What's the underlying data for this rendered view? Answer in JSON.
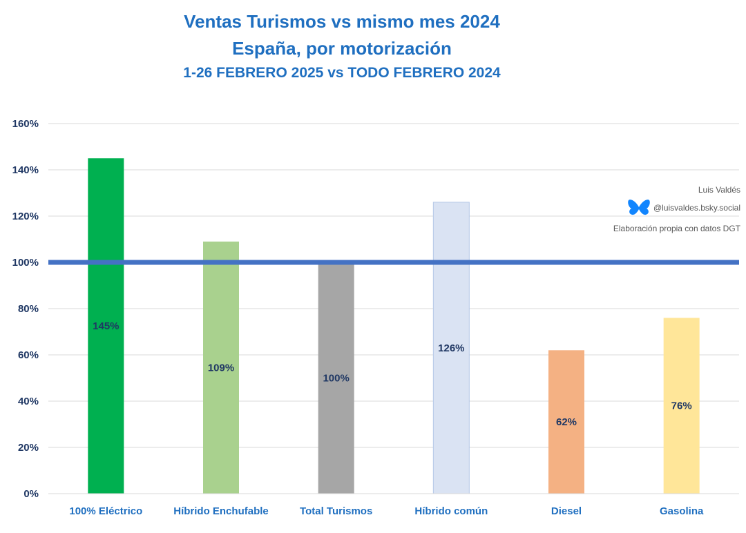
{
  "title": "Ventas Turismos vs mismo mes 2024",
  "subtitle": "España, por motorización",
  "subtitle2": "1-26 FEBRERO 2025 vs TODO FEBRERO 2024",
  "credits": {
    "author": "Luis Valdés",
    "handle": "@luisvaldes.bsky.social",
    "source": "Elaboración propia con datos DGT",
    "handle_icon": "butterfly-icon"
  },
  "chart_data": {
    "type": "bar",
    "categories": [
      "100% Eléctrico",
      "Híbrido Enchufable",
      "Total Turismos",
      "Híbrido común",
      "Diesel",
      "Gasolina"
    ],
    "values": [
      145,
      109,
      100,
      126,
      62,
      76
    ],
    "data_labels": [
      "145%",
      "109%",
      "100%",
      "126%",
      "62%",
      "76%"
    ],
    "y_ticks": [
      0,
      20,
      40,
      60,
      80,
      100,
      120,
      140,
      160
    ],
    "y_tick_labels": [
      "0%",
      "20%",
      "40%",
      "60%",
      "80%",
      "100%",
      "120%",
      "140%",
      "160%"
    ],
    "ylim": [
      0,
      160
    ],
    "reference_line": 100,
    "grid": true,
    "legend": "none",
    "colors": [
      "#00b050",
      "#a9d18e",
      "#a6a6a6",
      "#dae3f3",
      "#f4b183",
      "#ffe699"
    ],
    "bar_borders": [
      "none",
      "none",
      "none",
      "#b4c7e7",
      "none",
      "none"
    ],
    "reference_line_color": "#4472c4",
    "axis_label_color": "#1f6fc0",
    "tick_label_color": "#203864",
    "data_label_color": "#203864"
  }
}
